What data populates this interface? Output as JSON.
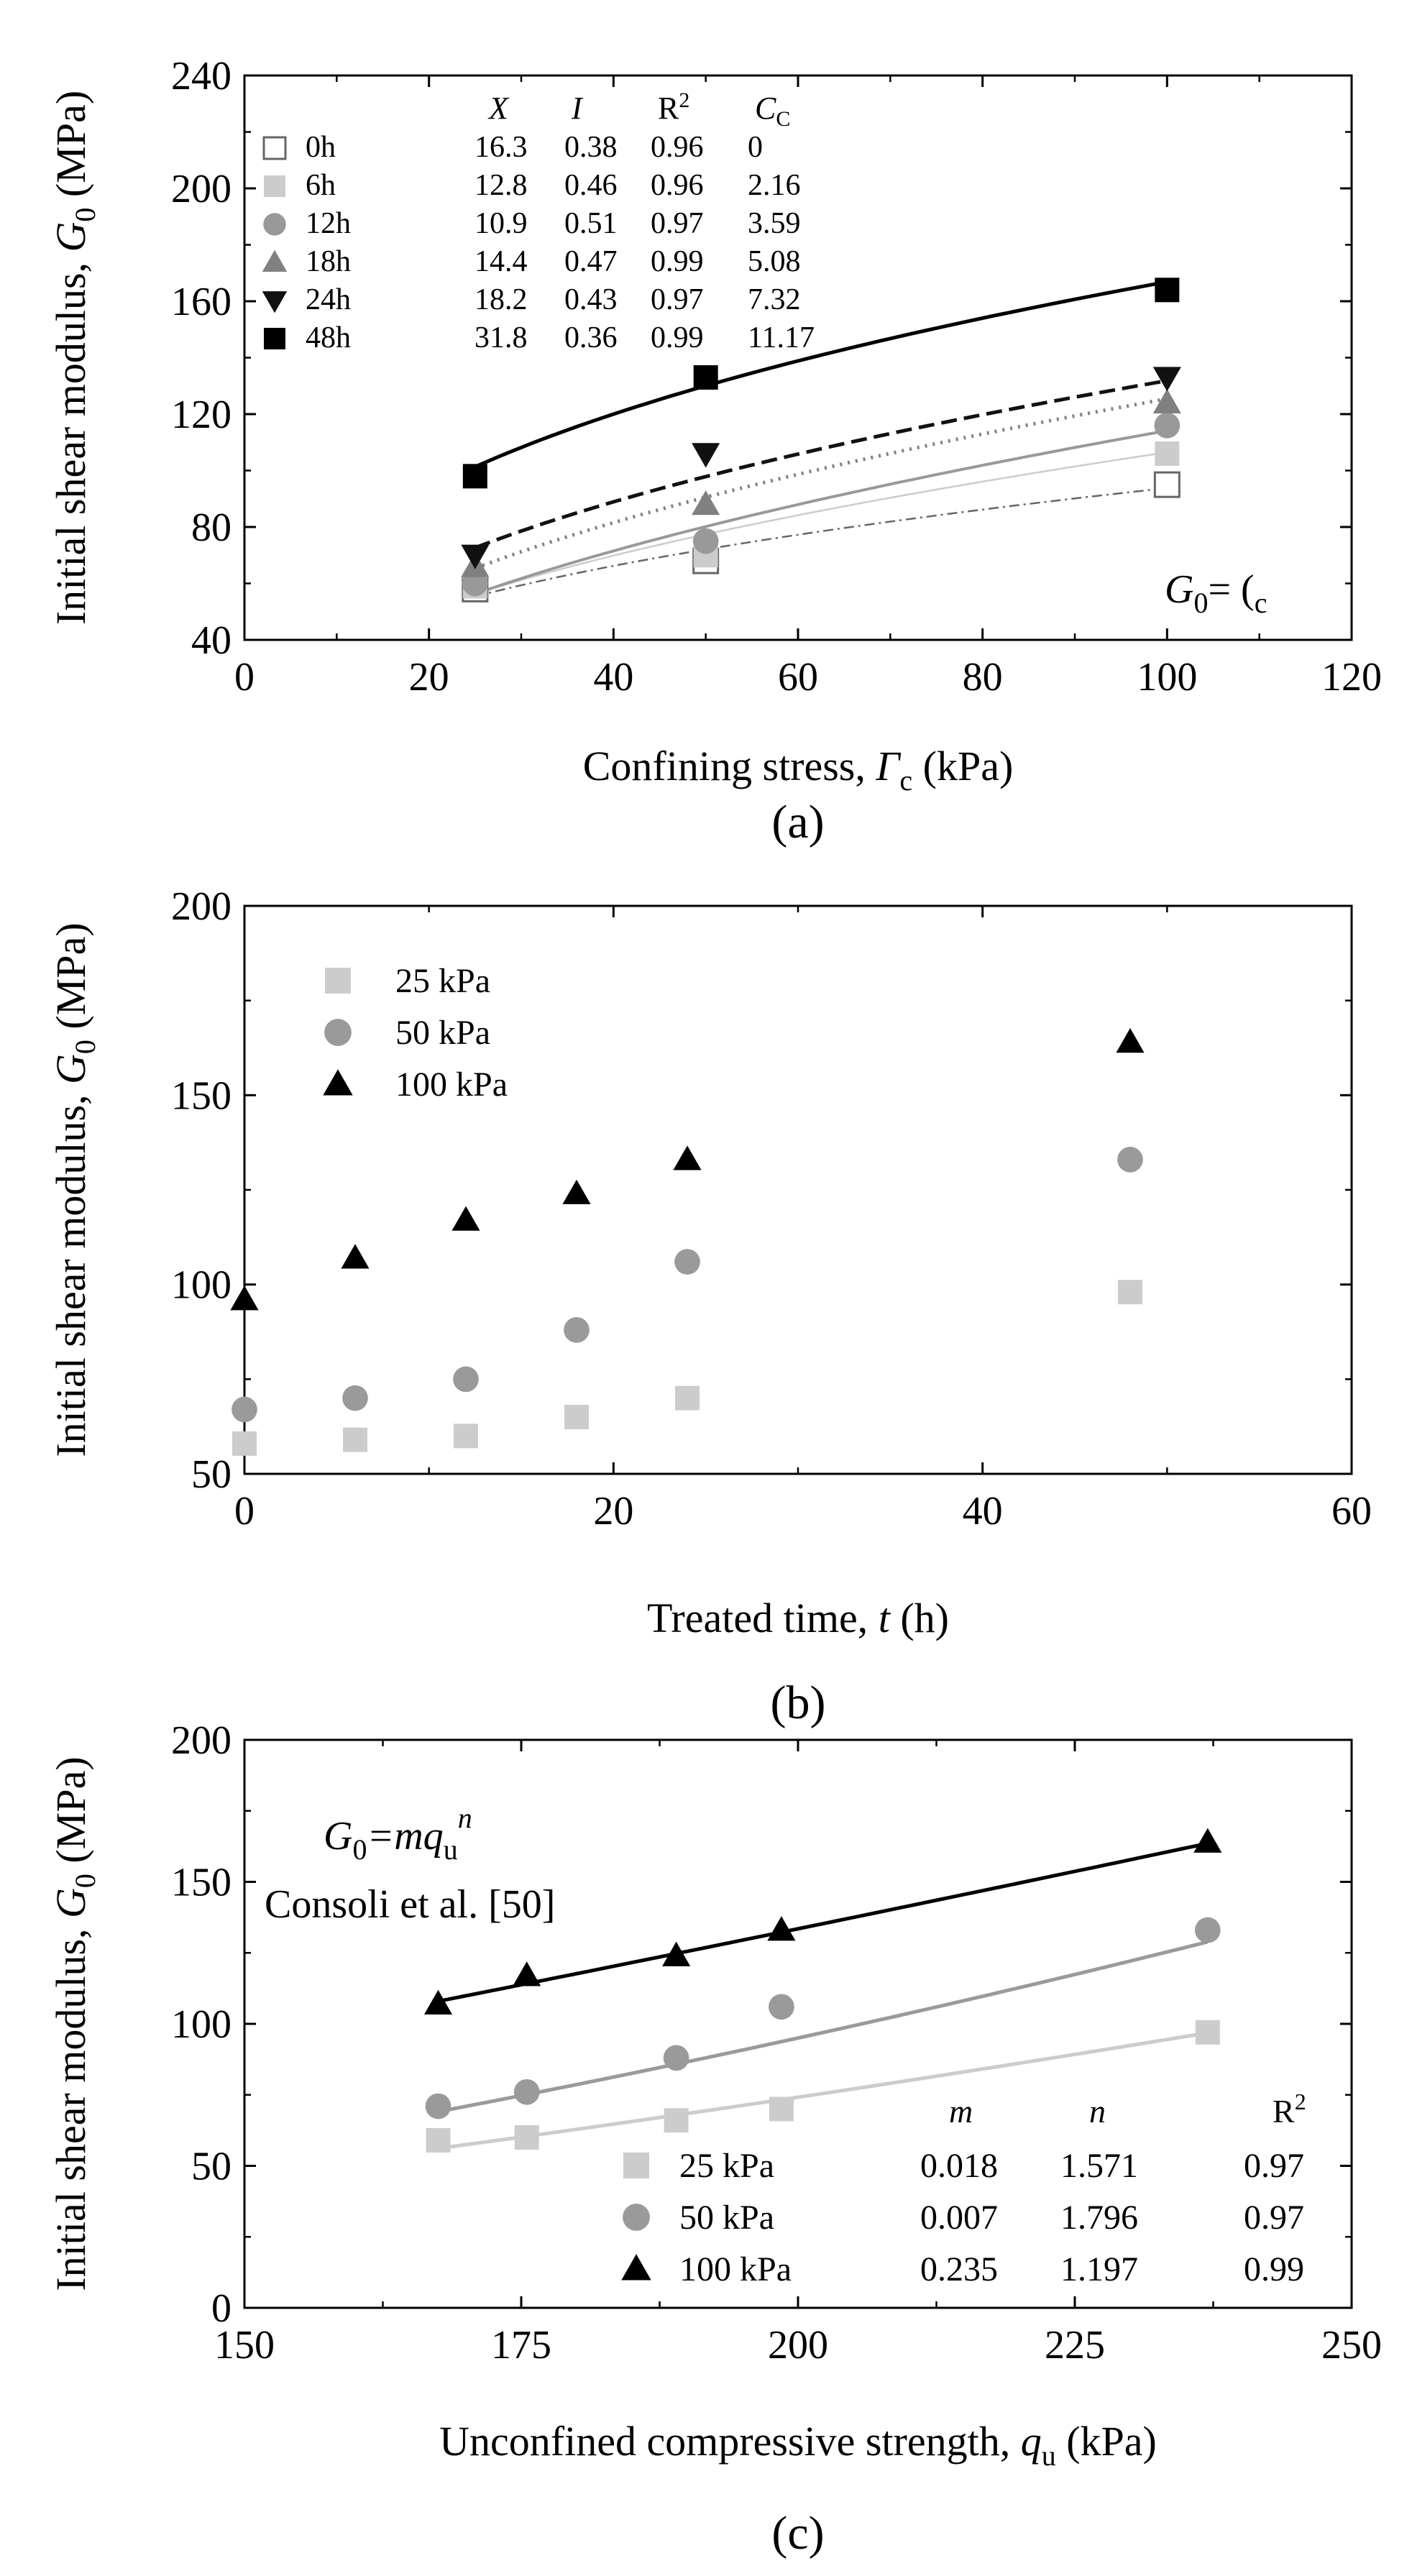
{
  "colors": {
    "h0": "#666666",
    "h6": "#cccccc",
    "h12": "#999999",
    "h18": "#808080",
    "h24": "#111111",
    "h48": "#000000",
    "kpa25": "#cccccc",
    "kpa50": "#9a9a9a",
    "kpa100": "#000000"
  },
  "chart_data": [
    {
      "id": "a",
      "type": "scatter",
      "panel_label": "(a)",
      "xlabel": "Confining stress, ",
      "xlabel_symbol": "Γ",
      "xlabel_sub": "c",
      "xlabel_unit": " (kPa)",
      "ylabel": "Initial shear modulus, ",
      "ylabel_symbol": "G",
      "ylabel_sub": "0",
      "ylabel_unit": " (MPa)",
      "xlim": [
        0,
        120
      ],
      "ylim": [
        40,
        240
      ],
      "xticks": [
        0,
        20,
        40,
        60,
        80,
        100,
        120
      ],
      "yticks": [
        40,
        80,
        120,
        160,
        200,
        240
      ],
      "equation_text": "G",
      "equation_sub": "0",
      "equation_rest": "=   (",
      "equation_sub2": "c",
      "table_headers": [
        "X",
        "I",
        "R2",
        "CC"
      ],
      "table_header_display": [
        "X",
        "I",
        "R",
        "C"
      ],
      "table_header_sup": [
        "",
        "",
        "2",
        ""
      ],
      "table_header_sub": [
        "",
        "",
        "",
        "C"
      ],
      "series": [
        {
          "name": "0h",
          "marker": "square-open",
          "color_key": "h0",
          "X": "16.3",
          "I": "0.38",
          "R2": "0.96",
          "CC": "0",
          "x": [
            25,
            50,
            100
          ],
          "y": [
            58,
            68,
            95
          ],
          "fit": {
            "a": 16.3,
            "b": 0.38
          },
          "fit_style": "dashdot"
        },
        {
          "name": "6h",
          "marker": "square",
          "color_key": "h6",
          "X": "12.8",
          "I": "0.46",
          "R2": "0.96",
          "CC": "2.16",
          "x": [
            25,
            50,
            100
          ],
          "y": [
            59,
            70,
            106
          ],
          "fit": {
            "a": 12.8,
            "b": 0.46
          },
          "fit_style": "solid-thin"
        },
        {
          "name": "12h",
          "marker": "circle",
          "color_key": "h12",
          "X": "10.9",
          "I": "0.51",
          "R2": "0.97",
          "CC": "3.59",
          "x": [
            25,
            50,
            100
          ],
          "y": [
            60,
            75,
            116
          ],
          "fit": {
            "a": 10.9,
            "b": 0.51
          },
          "fit_style": "solid"
        },
        {
          "name": "18h",
          "marker": "triangle-up",
          "color_key": "h18",
          "X": "14.4",
          "I": "0.47",
          "R2": "0.99",
          "CC": "5.08",
          "x": [
            25,
            50,
            100
          ],
          "y": [
            66,
            88,
            124
          ],
          "fit": {
            "a": 14.4,
            "b": 0.47
          },
          "fit_style": "dotted"
        },
        {
          "name": "24h",
          "marker": "triangle-down",
          "color_key": "h24",
          "X": "18.2",
          "I": "0.43",
          "R2": "0.97",
          "CC": "7.32",
          "x": [
            25,
            50,
            100
          ],
          "y": [
            70,
            106,
            133
          ],
          "fit": {
            "a": 18.2,
            "b": 0.43
          },
          "fit_style": "dashed"
        },
        {
          "name": "48h",
          "marker": "square",
          "color_key": "h48",
          "X": "31.8",
          "I": "0.36",
          "R2": "0.99",
          "CC": "11.17",
          "x": [
            25,
            50,
            100
          ],
          "y": [
            98,
            133,
            164
          ],
          "fit": {
            "a": 31.8,
            "b": 0.36
          },
          "fit_style": "solid-thick"
        }
      ]
    },
    {
      "id": "b",
      "type": "scatter",
      "panel_label": "(b)",
      "xlabel": "Treated time, ",
      "xlabel_symbol": "t",
      "xlabel_unit": " (h)",
      "ylabel": "Initial shear modulus, ",
      "ylabel_symbol": "G",
      "ylabel_sub": "0",
      "ylabel_unit": " (MPa)",
      "xlim": [
        0,
        60
      ],
      "ylim": [
        50,
        200
      ],
      "xticks": [
        0,
        20,
        40,
        60
      ],
      "yticks": [
        50,
        100,
        150,
        200
      ],
      "series": [
        {
          "name": "25 kPa",
          "marker": "square",
          "color_key": "kpa25",
          "x": [
            0,
            6,
            12,
            18,
            24,
            48
          ],
          "y": [
            58,
            59,
            60,
            65,
            70,
            98
          ]
        },
        {
          "name": "50 kPa",
          "marker": "circle",
          "color_key": "kpa50",
          "x": [
            0,
            6,
            12,
            18,
            24,
            48
          ],
          "y": [
            67,
            70,
            75,
            88,
            106,
            133
          ]
        },
        {
          "name": "100 kPa",
          "marker": "triangle-up",
          "color_key": "kpa100",
          "x": [
            0,
            6,
            12,
            18,
            24,
            48
          ],
          "y": [
            96,
            107,
            117,
            124,
            133,
            164
          ]
        }
      ]
    },
    {
      "id": "c",
      "type": "scatter",
      "panel_label": "(c)",
      "xlabel": "Unconfined compressive strength, ",
      "xlabel_symbol": "q",
      "xlabel_sub": "u",
      "xlabel_unit": " (kPa)",
      "ylabel": "Initial shear modulus, ",
      "ylabel_symbol": "G",
      "ylabel_sub": "0",
      "ylabel_unit": " (MPa)",
      "xlim": [
        150,
        250
      ],
      "ylim": [
        0,
        200
      ],
      "xticks": [
        150,
        175,
        200,
        225,
        250
      ],
      "yticks": [
        0,
        50,
        100,
        150,
        200
      ],
      "equation_text": "G",
      "equation_sub": "0",
      "equation_rest": "=mq",
      "equation_sub2": "u",
      "equation_sup": "n",
      "reference": "Consoli et al. [50]",
      "table_headers": [
        "m",
        "n",
        "R2"
      ],
      "table_header_display": [
        "m",
        "n",
        "R"
      ],
      "table_header_sup": [
        "",
        "",
        "2"
      ],
      "series": [
        {
          "name": "25 kPa",
          "marker": "square",
          "color_key": "kpa25",
          "m": "0.018",
          "n": "1.571",
          "R2": "0.97",
          "x": [
            167.5,
            175.5,
            189,
            198.5,
            237
          ],
          "y": [
            59,
            60,
            66,
            70,
            97
          ],
          "fit": {
            "a": 0.018,
            "b": 1.571
          }
        },
        {
          "name": "50 kPa",
          "marker": "circle",
          "color_key": "kpa50",
          "m": "0.007",
          "n": "1.796",
          "R2": "0.97",
          "x": [
            167.5,
            175.5,
            189,
            198.5,
            237
          ],
          "y": [
            71,
            76,
            88,
            106,
            133
          ],
          "fit": {
            "a": 0.007,
            "b": 1.796
          }
        },
        {
          "name": "100 kPa",
          "marker": "triangle-up",
          "color_key": "kpa100",
          "m": "0.235",
          "n": "1.197",
          "R2": "0.99",
          "x": [
            167.5,
            175.5,
            189,
            198.5,
            237
          ],
          "y": [
            107,
            117,
            124,
            133,
            164
          ],
          "fit": {
            "a": 0.235,
            "b": 1.197
          }
        }
      ]
    }
  ]
}
